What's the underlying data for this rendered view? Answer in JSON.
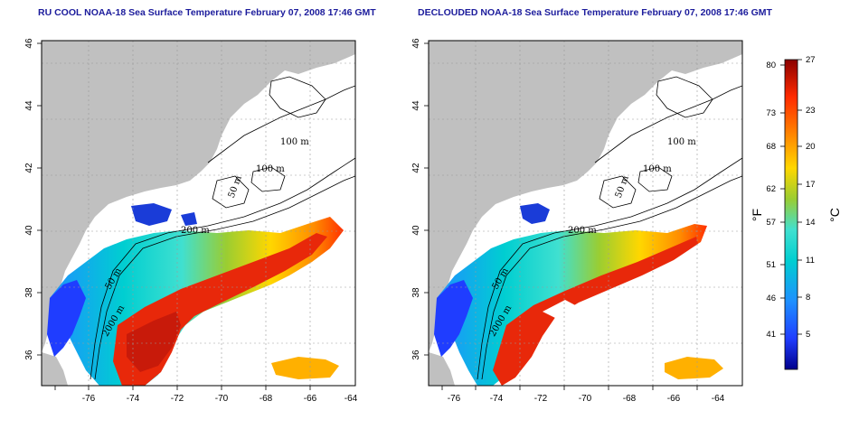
{
  "left_panel": {
    "title": "RU COOL NOAA-18 Sea Surface Temperature February 07, 2008 17:46 GMT"
  },
  "right_panel": {
    "title": "DECLOUDED NOAA-18 Sea Surface Temperature February 07, 2008 17:46 GMT"
  },
  "axes": {
    "lon_ticks": [
      "-76",
      "-74",
      "-72",
      "-70",
      "-68",
      "-66",
      "-64"
    ],
    "lat_ticks": [
      "46",
      "44",
      "42",
      "40",
      "38",
      "36"
    ]
  },
  "contour_labels": [
    "100 m",
    "100 m",
    "50 m",
    "200 m",
    "50 m",
    "2000 m"
  ],
  "colorbar": {
    "fahrenheit_ticks": [
      "80",
      "73",
      "68",
      "62",
      "57",
      "51",
      "46",
      "41"
    ],
    "celsius_ticks": [
      "27",
      "23",
      "20",
      "17",
      "14",
      "11",
      "8",
      "5"
    ],
    "fahrenheit_unit": "°F",
    "celsius_unit": "°C",
    "colors": [
      "#00008c",
      "#1f3dff",
      "#1e90ff",
      "#00ced1",
      "#40e0d0",
      "#9acd32",
      "#ffd700",
      "#ff8c00",
      "#ff2a00",
      "#8b0000"
    ]
  },
  "colors": {
    "land": "#c0c0c0",
    "cloud_mask": "#ffffff",
    "title": "#1c1c9c"
  }
}
